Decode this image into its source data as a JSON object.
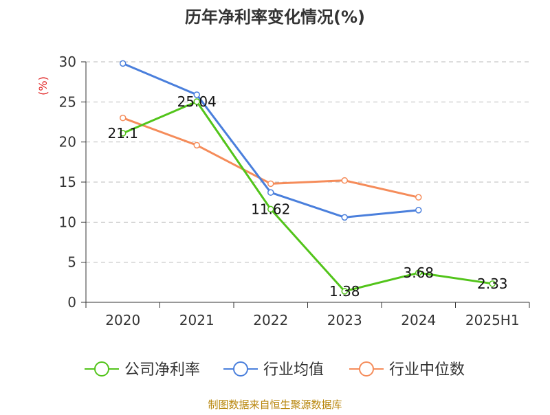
{
  "chart_data": {
    "type": "line",
    "title": "历年净利率变化情况(%)",
    "ylabel": "(%)",
    "xlabel": "",
    "categories": [
      "2020",
      "2021",
      "2022",
      "2023",
      "2024",
      "2025H1"
    ],
    "ylim": [
      0,
      30
    ],
    "yticks": [
      0,
      5,
      10,
      15,
      20,
      25,
      30
    ],
    "grid": true,
    "legend_position": "bottom",
    "series": [
      {
        "name": "公司净利率",
        "color": "#52c41a",
        "values": [
          21.1,
          25.04,
          11.62,
          1.38,
          3.68,
          2.33
        ],
        "labels": [
          "21.1",
          "25.04",
          "11.62",
          "1.38",
          "3.68",
          "2.33"
        ]
      },
      {
        "name": "行业均值",
        "color": "#4a7fdc",
        "values": [
          29.8,
          25.9,
          13.7,
          10.6,
          11.5,
          null
        ],
        "labels": []
      },
      {
        "name": "行业中位数",
        "color": "#f58c5a",
        "values": [
          23.0,
          19.6,
          14.8,
          15.2,
          13.1,
          null
        ],
        "labels": []
      }
    ]
  },
  "source": "制图数据来自恒生聚源数据库"
}
